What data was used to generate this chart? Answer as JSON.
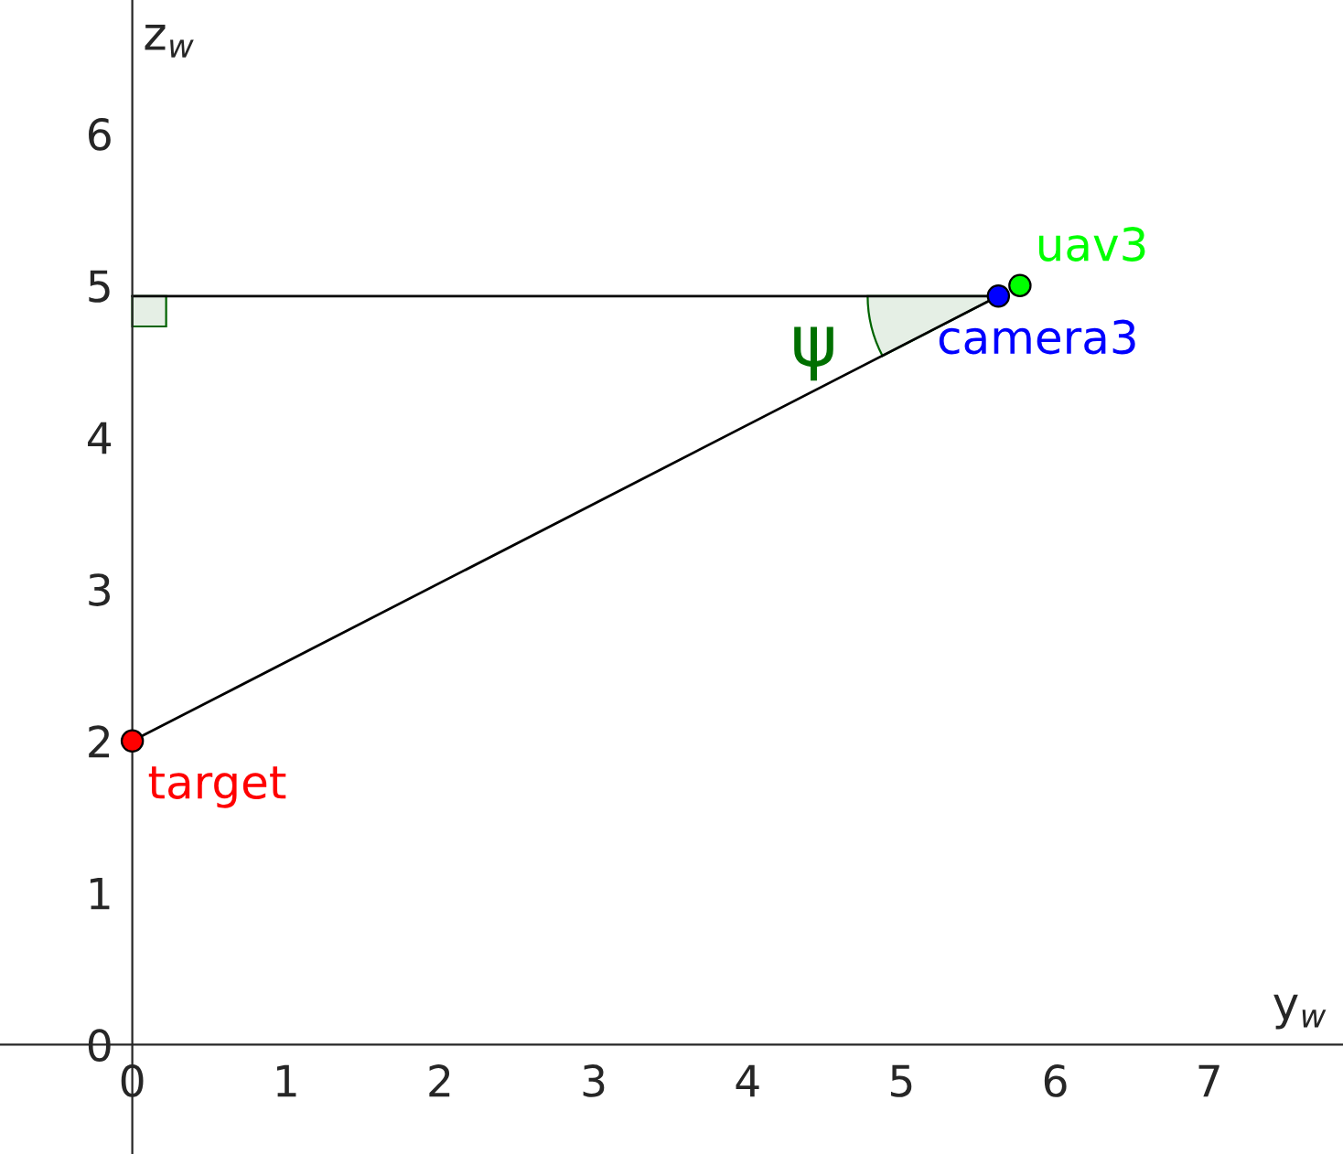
{
  "chart_data": {
    "type": "scatter",
    "xlabel": "y$_{w}$",
    "ylabel": "z$_{w}$",
    "xlim": [
      -0.86,
      7.87
    ],
    "ylim": [
      -0.72,
      6.88
    ],
    "xticks": [
      0,
      1,
      2,
      3,
      4,
      5,
      6,
      7
    ],
    "yticks": [
      0,
      1,
      2,
      3,
      4,
      5,
      6
    ],
    "grid": false,
    "series": [
      {
        "type": "line",
        "color": "#000000",
        "x": [
          0,
          5.63
        ],
        "values": [
          4.93,
          4.93
        ]
      },
      {
        "type": "line",
        "color": "#000000",
        "x": [
          0,
          5.63
        ],
        "values": [
          2.0,
          4.93
        ]
      },
      {
        "name": "target",
        "color": "#ff0000",
        "marker": "circle",
        "x": [
          0
        ],
        "values": [
          2.0
        ]
      },
      {
        "name": "camera3",
        "color": "#0000ff",
        "marker": "circle",
        "x": [
          5.63
        ],
        "values": [
          4.93
        ]
      },
      {
        "name": "uav3",
        "color": "#00ff00",
        "marker": "circle",
        "x": [
          5.77
        ],
        "values": [
          5.0
        ]
      }
    ],
    "annotations": [
      "ψ"
    ]
  }
}
